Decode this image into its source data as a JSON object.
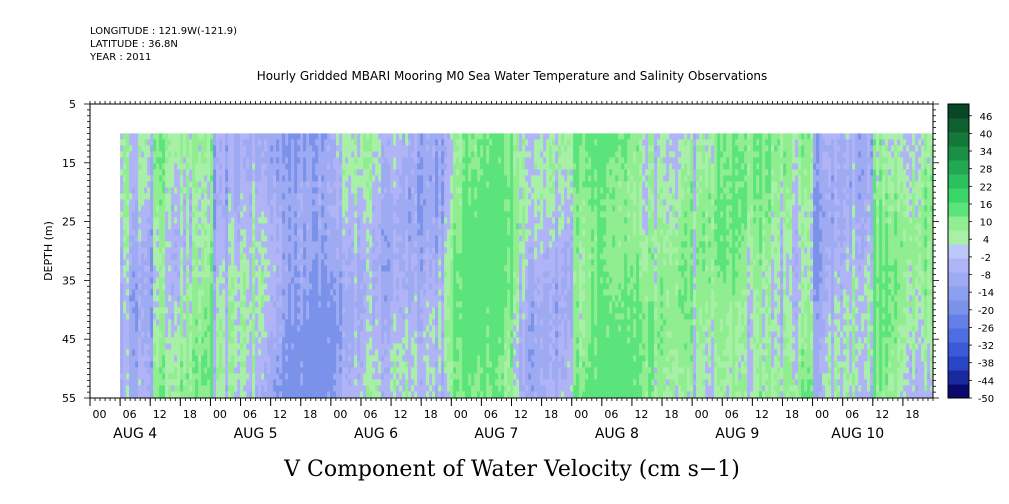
{
  "header": {
    "longitude": "LONGITUDE : 121.9W(-121.9)",
    "latitude": "LATITUDE : 36.8N",
    "year": "YEAR : 2011"
  },
  "chart_data": {
    "type": "heatmap",
    "title": "Hourly Gridded MBARI Mooring M0 Sea Water Temperature and Salinity Observations",
    "variable_label": "V Component of Water Velocity (cm s−1)",
    "ylabel": "DEPTH (m)",
    "y_axis": {
      "range": [
        5,
        55
      ],
      "inverted": true,
      "tick_labels": [
        "5",
        "15",
        "25",
        "35",
        "45",
        "55"
      ]
    },
    "x_axis": {
      "hour_labels": [
        "00",
        "06",
        "12",
        "18",
        "00",
        "06",
        "12",
        "18",
        "00",
        "06",
        "12",
        "18",
        "00",
        "06",
        "12",
        "18",
        "00",
        "06",
        "12",
        "18",
        "00",
        "06",
        "12",
        "18",
        "00",
        "06",
        "12",
        "18"
      ],
      "day_labels": [
        "AUG 4",
        "AUG 5",
        "AUG 6",
        "AUG 7",
        "AUG 8",
        "AUG 9",
        "AUG 10"
      ],
      "start": "2011-08-04 00:00",
      "end": "2011-08-10 23:00",
      "data_start": "2011-08-04 06:00",
      "data_depth_range": [
        10,
        55
      ]
    },
    "colorbar": {
      "tick_labels": [
        "46",
        "40",
        "34",
        "28",
        "22",
        "16",
        "10",
        "4",
        "-2",
        "-8",
        "-14",
        "-20",
        "-26",
        "-32",
        "-38",
        "-44",
        "-50"
      ],
      "range": [
        -50,
        50
      ],
      "colors": [
        "#0a0a6e",
        "#1a2a9e",
        "#2a44c6",
        "#3a5ad8",
        "#4c6ee2",
        "#6480e8",
        "#7a92ea",
        "#8c9ff0",
        "#9eaaf2",
        "#b0b4f6",
        "#bcc8f8",
        "#a8f0a8",
        "#90ee90",
        "#5ce47c",
        "#3ad66a",
        "#2cc060",
        "#22a852",
        "#1a9046",
        "#14783a",
        "#0e6030",
        "#084826"
      ]
    },
    "day_pattern": [
      {
        "day": "AUG 4",
        "am": "blue",
        "pm": "green"
      },
      {
        "day": "AUG 5",
        "am": "blue",
        "pm": "blue"
      },
      {
        "day": "AUG 6",
        "am": "blue",
        "pm": "mixed"
      },
      {
        "day": "AUG 7",
        "am": "green",
        "pm": "mixed"
      },
      {
        "day": "AUG 8",
        "am": "green",
        "pm": "green"
      },
      {
        "day": "AUG 9",
        "am": "mixed",
        "pm": "green"
      },
      {
        "day": "AUG 10",
        "am": "blue",
        "pm": "green"
      }
    ]
  }
}
